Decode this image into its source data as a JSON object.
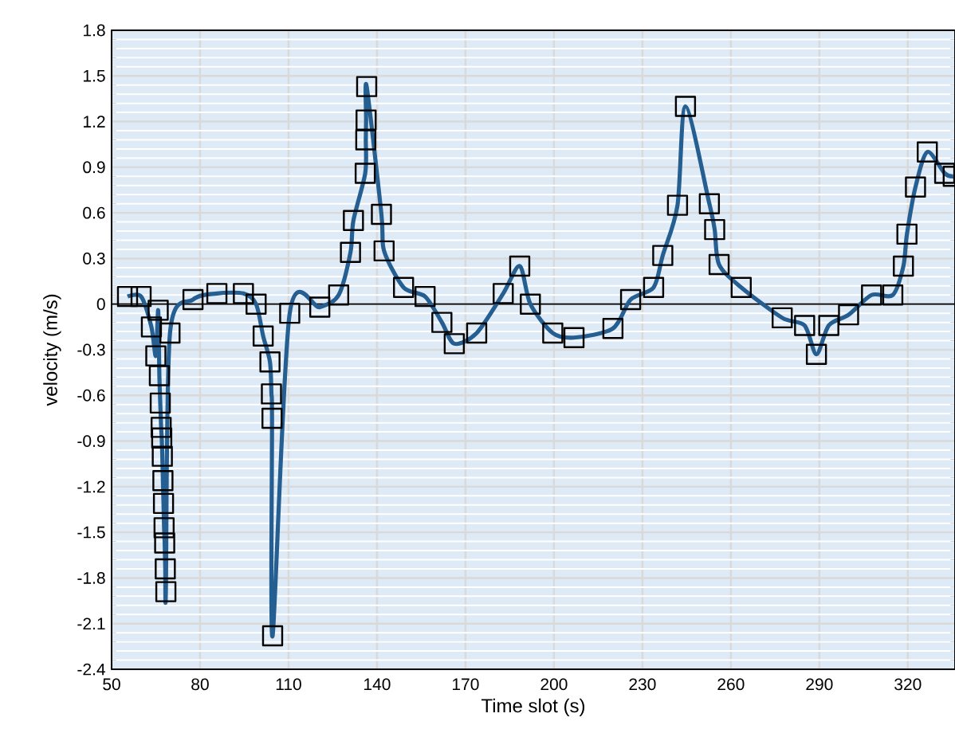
{
  "chart_data": {
    "type": "line",
    "xlabel": "Time slot (s)",
    "ylabel": "velocity (m/s)",
    "x": [
      55.4,
      60,
      63.5,
      65,
      65.8,
      66.2,
      66.5,
      66.8,
      67,
      67.2,
      67.4,
      67.6,
      67.8,
      68,
      68.2,
      68.4,
      69.8,
      77.6,
      85.7,
      94.7,
      99,
      101.4,
      103.7,
      104.2,
      104.4,
      104.6,
      110.4,
      120.6,
      127,
      131,
      132,
      136,
      136.2,
      136.3,
      136.5,
      141.5,
      142.4,
      149,
      156.3,
      162,
      166.2,
      173.8,
      182.8,
      188.4,
      192,
      199.6,
      206.8,
      220,
      226,
      233.8,
      236.9,
      241.9,
      244.6,
      252.7,
      254.5,
      256,
      263.5,
      277.4,
      285,
      289,
      293.2,
      299.9,
      307.7,
      314.9,
      318.5,
      319.7,
      322.6,
      326.6,
      332.5,
      335.4
    ],
    "series": [
      {
        "color": "#255e91",
        "values": [
          0.05,
          0.05,
          -0.15,
          -0.34,
          -0.04,
          -0.47,
          -0.65,
          -0.81,
          -0.88,
          -1.0,
          -1.16,
          -1.31,
          -1.47,
          -1.57,
          -1.74,
          -1.89,
          -0.19,
          0.03,
          0.07,
          0.07,
          0.0,
          -0.21,
          -0.38,
          -0.59,
          -0.75,
          -2.18,
          -0.06,
          -0.02,
          0.06,
          0.34,
          0.55,
          0.86,
          1.08,
          1.21,
          1.43,
          0.59,
          0.35,
          0.11,
          0.05,
          -0.12,
          -0.26,
          -0.19,
          0.07,
          0.25,
          0.0,
          -0.19,
          -0.22,
          -0.16,
          0.03,
          0.11,
          0.32,
          0.65,
          1.3,
          0.66,
          0.49,
          0.26,
          0.11,
          -0.09,
          -0.14,
          -0.33,
          -0.14,
          -0.07,
          0.06,
          0.06,
          0.25,
          0.46,
          0.77,
          1.0,
          0.86,
          0.84
        ]
      }
    ],
    "xlim": [
      50,
      336
    ],
    "ylim": [
      -2.4,
      1.8
    ],
    "xticks": [
      50,
      80,
      110,
      140,
      170,
      200,
      230,
      260,
      290,
      320
    ],
    "yticks": [
      -2.4,
      -2.1,
      -1.8,
      -1.5,
      -1.2,
      -0.9,
      -0.6,
      -0.3,
      0,
      0.3,
      0.6,
      0.9,
      1.2,
      1.5,
      1.8
    ],
    "ref_lines": [
      {
        "axis": "y",
        "value": 0
      }
    ],
    "grid": true,
    "marker": "square",
    "line_style": "solid",
    "legend": false
  }
}
